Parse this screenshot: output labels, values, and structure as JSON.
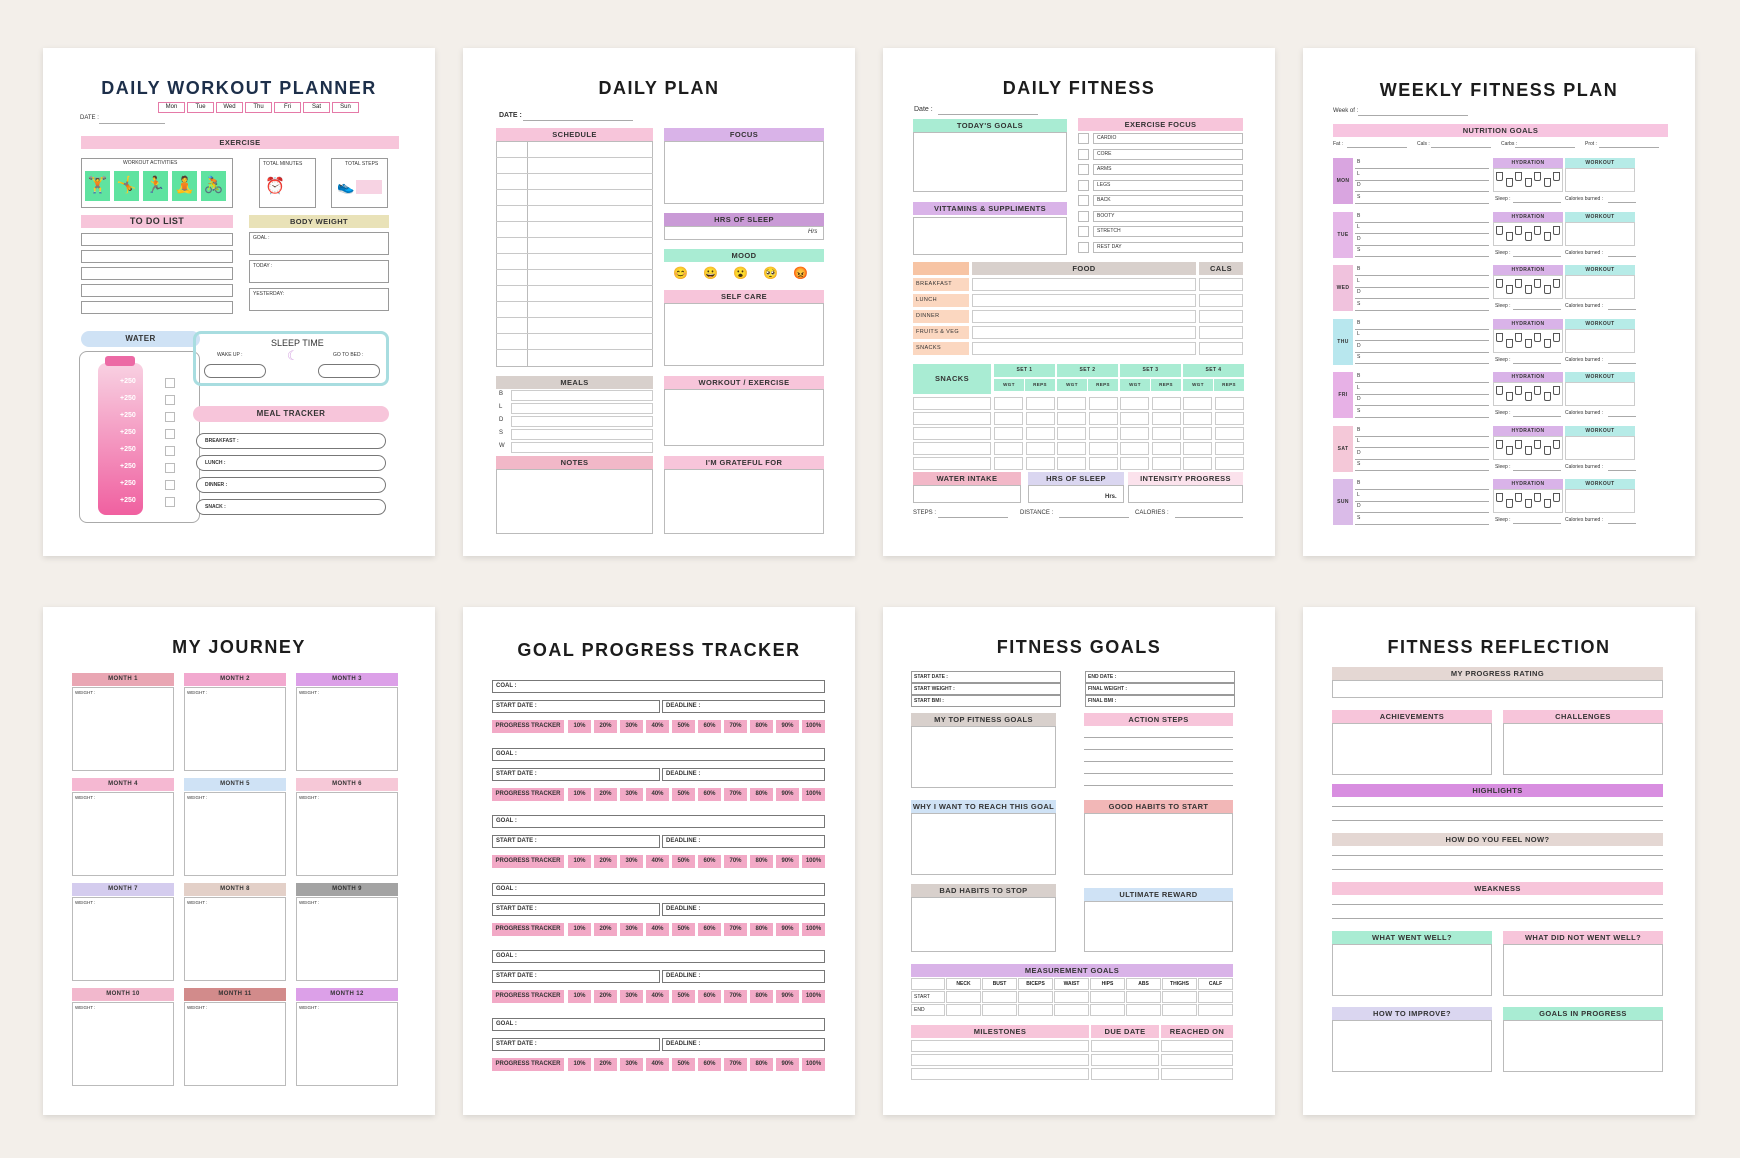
{
  "colors": {
    "background": "#f3efea",
    "pink": "#f7c5da",
    "purple": "#d9b3e8",
    "green": "#a9ecd3",
    "blue": "#cfe2f5"
  },
  "p1": {
    "title": "DAILY WORKOUT PLANNER",
    "date": "DATE :",
    "days": [
      "Mon",
      "Tue",
      "Wed",
      "Thu",
      "Fri",
      "Sat",
      "Sun"
    ],
    "exercise": "EXERCISE",
    "workout_activities": "WORKOUT ACTIVITIES",
    "total_minutes": "TOTAL MINUTES",
    "total_steps": "TOTAL STEPS",
    "todo": "TO DO LIST",
    "body_weight": "BODY WEIGHT",
    "goal": "GOAL :",
    "today": "TODAY :",
    "yesterday": "YESTERDAY:",
    "water": "WATER",
    "water_marks": [
      "+250",
      "+250",
      "+250",
      "+250",
      "+250",
      "+250",
      "+250",
      "+250"
    ],
    "sleep_time": "SLEEP TIME",
    "wake_up": "WAKE UP :",
    "go_to_bed": "GO TO BED :",
    "meal_tracker": "MEAL TRACKER",
    "meals": [
      "BREAKFAST :",
      "LUNCH :",
      "DINNER :",
      "SNACK :"
    ]
  },
  "p2": {
    "title": "DAILY PLAN",
    "date": "DATE :",
    "schedule": "SCHEDULE",
    "focus": "FOCUS",
    "hrs_sleep": "HRS OF SLEEP",
    "hrs": "Hrs",
    "mood": "MOOD",
    "self_care": "SELF CARE",
    "meals": "MEALS",
    "meal_letters": [
      "B",
      "L",
      "D",
      "S",
      "W"
    ],
    "workout": "WORKOUT / EXERCISE",
    "notes": "NOTES",
    "grateful": "I'M GRATEFUL FOR"
  },
  "p3": {
    "title": "DAILY FITNESS",
    "date": "Date :",
    "todays_goals": "TODAY'S GOALS",
    "exercise_focus": "EXERCISE FOCUS",
    "focus_items": [
      "CARDIO",
      "CORE",
      "ARMS",
      "LEGS",
      "BACK",
      "BOOTY",
      "STRETCH",
      "REST DAY"
    ],
    "vitamins": "VITTAMINS & SUPPLIMENTS",
    "food": "FOOD",
    "cals": "CALS",
    "meals": [
      "BREAKFAST",
      "LUNCH",
      "DINNER",
      "FRUITS & VEG",
      "SNACKS"
    ],
    "snacks": "SNACKS",
    "sets": [
      "SET 1",
      "SET 2",
      "SET 3",
      "SET 4"
    ],
    "wgt": "WGT",
    "reps": "REPS",
    "water_intake": "WATER INTAKE",
    "hrs_sleep": "HRS OF SLEEP",
    "hrs": "Hrs.",
    "intensity": "INTENSITY PROGRESS",
    "steps": "STEPS :",
    "distance": "DISTANCE :",
    "calories": "CALORIES :"
  },
  "p4": {
    "title": "WEEKLY  FITNESS PLAN",
    "week_of": "Week of :",
    "nutrition_goals": "NUTRITION GOALS",
    "macros": [
      "Fat :",
      "Cals :",
      "Carbs :",
      "Prot :"
    ],
    "days": [
      "MON",
      "TUE",
      "WED",
      "THU",
      "FRI",
      "SAT",
      "SUN"
    ],
    "letters": [
      "B",
      "L",
      "D",
      "S"
    ],
    "hydration": "HYDRATION",
    "workout": "WORKOUT",
    "sleep": "Sleep :",
    "calories_burned": "Calories burned :"
  },
  "p5": {
    "title": "MY JOURNEY",
    "months": [
      "MONTH 1",
      "MONTH 2",
      "MONTH 3",
      "MONTH 4",
      "MONTH 5",
      "MONTH 6",
      "MONTH 7",
      "MONTH 8",
      "MONTH 9",
      "MONTH 10",
      "MONTH 11",
      "MONTH 12"
    ],
    "weight": "WEIGHT :"
  },
  "p6": {
    "title": "GOAL PROGRESS TRACKER",
    "goal": "GOAL :",
    "goal_first": "COAL :",
    "start_date": "START DATE :",
    "deadline": "DEADLINE :",
    "progress_tracker": "PROGRESS TRACKER",
    "percents": [
      "10%",
      "20%",
      "30%",
      "40%",
      "50%",
      "60%",
      "70%",
      "80%",
      "90%",
      "100%"
    ]
  },
  "p7": {
    "title": "FITNESS  GOALS",
    "start_date": "START DATE :",
    "start_weight": "START WEIGHT :",
    "start_bmi": "START BMI :",
    "end_date": "END DATE :",
    "final_weight": "FINAL WEIGHT :",
    "final_bmi": "FINAL BMI :",
    "top_goals": "MY TOP FITNESS GOALS",
    "action_steps": "ACTION STEPS",
    "why": "WHY I WANT TO REACH THIS GOAL ?",
    "good_habits": "GOOD HABITS TO START",
    "bad_habits": "BAD HABITS TO STOP",
    "ultimate_reward": "ULTIMATE REWARD",
    "measurement_goals": "MEASUREMENT GOALS",
    "measures": [
      "NECK",
      "BUST",
      "BICEPS",
      "WAIST",
      "HIPS",
      "ABS",
      "THIGHS",
      "CALF"
    ],
    "start": "START",
    "end": "END",
    "milestones": "MILESTONES",
    "due_date": "DUE DATE",
    "reached_on": "REACHED ON"
  },
  "p8": {
    "title": "FITNESS REFLECTION",
    "rating": "MY PROGRESS RATING",
    "achievements": "ACHIEVEMENTS",
    "challenges": "CHALLENGES",
    "highlights": "HIGHLIGHTS",
    "how_feel": "HOW DO YOU FEEL NOW?",
    "weakness": "WEAKNESS",
    "went_well": "WHAT WENT WELL?",
    "not_well": "WHAT DID NOT WENT WELL?",
    "improve": "HOW TO IMPROVE?",
    "in_progress": "GOALS IN PROGRESS"
  }
}
